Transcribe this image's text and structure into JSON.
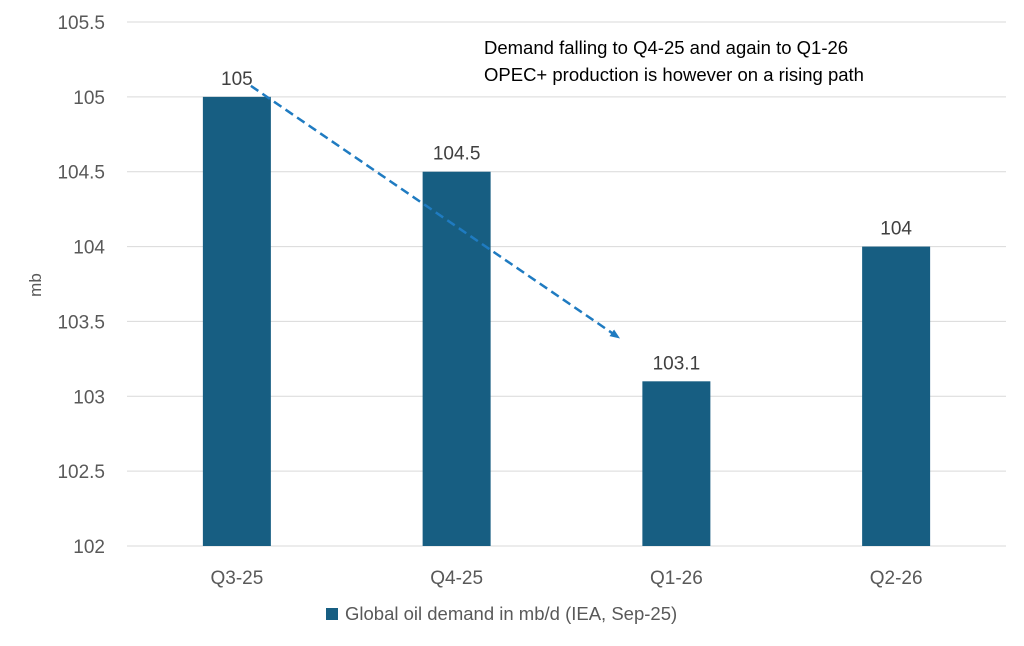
{
  "chart_data": {
    "type": "bar",
    "title": "",
    "xlabel": "",
    "ylabel": "mb",
    "categories": [
      "Q3-25",
      "Q4-25",
      "Q1-26",
      "Q2-26"
    ],
    "series": [
      {
        "name": "Global oil demand in mb/d (IEA, Sep-25)",
        "values": [
          105,
          104.5,
          103.1,
          104
        ]
      }
    ],
    "data_labels": [
      "105",
      "104.5",
      "103.1",
      "104"
    ],
    "ylim": [
      102,
      105.5
    ],
    "yticks": [
      102,
      102.5,
      103,
      103.5,
      104,
      104.5,
      105,
      105.5
    ],
    "ytick_labels": [
      "102",
      "102.5",
      "103",
      "103.5",
      "104",
      "104.5",
      "105",
      "105.5"
    ],
    "grid": true,
    "legend_position": "bottom",
    "annotations": [
      "Demand falling to Q4-25 and again to Q1-26",
      "OPEC+ production is however on a rising path"
    ],
    "trend_arrow": {
      "from_category": "Q3-25",
      "to_category": "Q1-26",
      "style": "dashed"
    }
  },
  "colors": {
    "bar": "#175E82",
    "arrow": "#1F7BC1",
    "grid": "#D9D9D9"
  }
}
